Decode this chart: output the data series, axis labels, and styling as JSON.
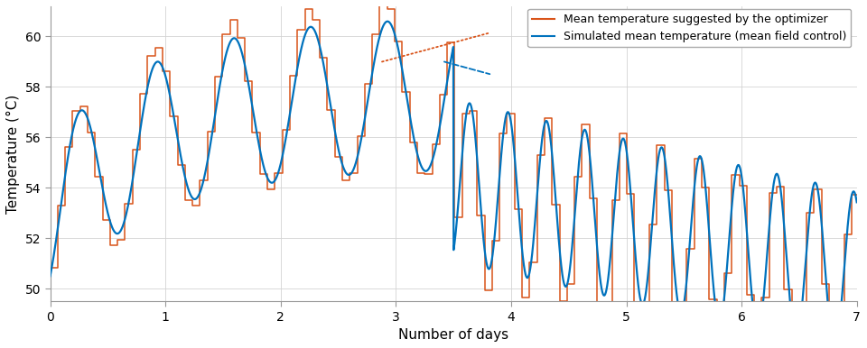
{
  "title": "",
  "xlabel": "Number of days",
  "ylabel": "Temperature (°C)",
  "xlim": [
    0,
    7
  ],
  "ylim": [
    49.5,
    61.2
  ],
  "yticks": [
    50,
    52,
    54,
    56,
    58,
    60
  ],
  "xticks": [
    0,
    1,
    2,
    3,
    4,
    5,
    6,
    7
  ],
  "optimizer_color": "#D95319",
  "simulated_color": "#0072BD",
  "legend_label_optimizer": "Mean temperature suggested by the optimizer",
  "legend_label_simulated": "Simulated mean temperature (mean field control)",
  "background_color": "#ffffff",
  "grid_color": "#d3d3d3"
}
